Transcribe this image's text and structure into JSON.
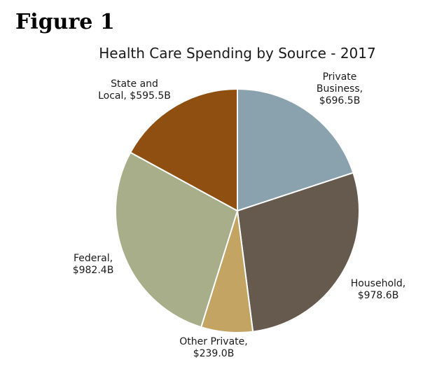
{
  "figure_label": "Figure 1",
  "chart_data": {
    "type": "pie",
    "title": "Health Care Spending by Source - 2017",
    "start": "12 o'clock",
    "direction": "clockwise",
    "slices": [
      {
        "name": "Private Business",
        "label_lines": [
          "Private",
          "Business,",
          "$696.5B"
        ],
        "value": 696.5,
        "color": "#8aa1ae"
      },
      {
        "name": "Household",
        "label_lines": [
          "Household,",
          "$978.6B"
        ],
        "value": 978.6,
        "color": "#66594e"
      },
      {
        "name": "Other Private",
        "label_lines": [
          "Other Private,",
          "$239.0B"
        ],
        "value": 239.0,
        "color": "#c4a463"
      },
      {
        "name": "Federal",
        "label_lines": [
          "Federal,",
          "$982.4B"
        ],
        "value": 982.4,
        "color": "#a7ae89"
      },
      {
        "name": "State and Local",
        "label_lines": [
          "State and",
          "Local, $595.5B"
        ],
        "value": 595.5,
        "color": "#8e4f11"
      }
    ]
  }
}
